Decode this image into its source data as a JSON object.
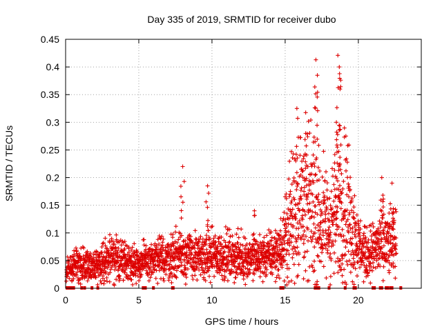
{
  "chart_data": {
    "type": "scatter",
    "title": "Day 335 of 2019, SRMTID for receiver dubo",
    "xlabel": "GPS time / hours",
    "ylabel": "SRMTID / TECUs",
    "xlim": [
      0,
      24.3
    ],
    "ylim": [
      0,
      0.45
    ],
    "x_ticks": [
      0,
      5,
      10,
      15,
      20
    ],
    "y_ticks": [
      0,
      0.05,
      0.1,
      0.15,
      0.2,
      0.25,
      0.3,
      0.35,
      0.4,
      0.45
    ],
    "grid": true,
    "marker": "+",
    "color": "#dd0000",
    "series": [
      {
        "name": "SRMTID",
        "baseline_profile": {
          "x": [
            0,
            0.5,
            1,
            2,
            3,
            4,
            5,
            6,
            7,
            7.5,
            8,
            9,
            10,
            11,
            12,
            13,
            14,
            14.8,
            15,
            15.5,
            16,
            16.5,
            17,
            17.5,
            18,
            18.5,
            19,
            19.5,
            20,
            20.5,
            21,
            21.5,
            22,
            22.5
          ],
          "y": [
            0.03,
            0.04,
            0.045,
            0.04,
            0.055,
            0.05,
            0.045,
            0.05,
            0.055,
            0.06,
            0.065,
            0.055,
            0.06,
            0.06,
            0.055,
            0.055,
            0.06,
            0.07,
            0.09,
            0.13,
            0.16,
            0.15,
            0.14,
            0.12,
            0.11,
            0.13,
            0.16,
            0.12,
            0.08,
            0.06,
            0.07,
            0.08,
            0.08,
            0.08
          ]
        },
        "peaks": [
          {
            "x": 8.0,
            "y": 0.22
          },
          {
            "x": 9.7,
            "y": 0.185
          },
          {
            "x": 12.9,
            "y": 0.14
          },
          {
            "x": 15.8,
            "y": 0.325
          },
          {
            "x": 16.4,
            "y": 0.28
          },
          {
            "x": 17.1,
            "y": 0.413
          },
          {
            "x": 17.2,
            "y": 0.385
          },
          {
            "x": 18.6,
            "y": 0.421
          },
          {
            "x": 18.7,
            "y": 0.4
          },
          {
            "x": 18.75,
            "y": 0.36
          },
          {
            "x": 18.5,
            "y": 0.3
          },
          {
            "x": 21.6,
            "y": 0.2
          },
          {
            "x": 22.3,
            "y": 0.19
          }
        ],
        "zero_markers_x": [
          0.1,
          0.25,
          0.4,
          0.55,
          1.1,
          1.3,
          1.8,
          2.2,
          5.3,
          5.45,
          6.0,
          7.3,
          7.35,
          14.7,
          14.85,
          17.05,
          17.1,
          17.2,
          17.3,
          18.0,
          19.1,
          19.7,
          19.75,
          19.8,
          21.0,
          21.1,
          21.5,
          21.6,
          21.9,
          22.0,
          22.2,
          22.3,
          22.9
        ]
      }
    ]
  }
}
